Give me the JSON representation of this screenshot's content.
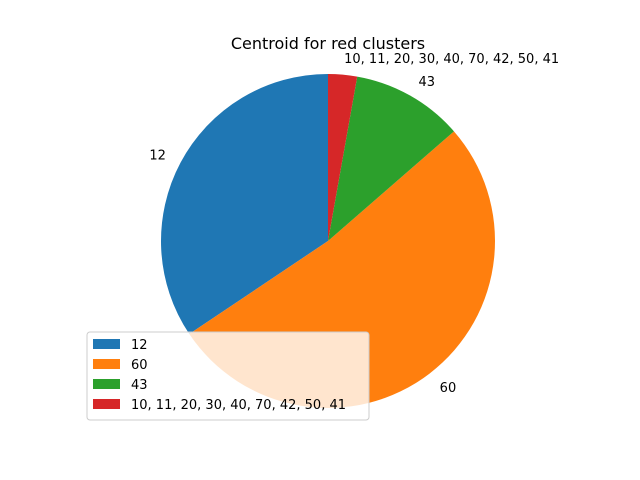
{
  "chart_data": {
    "type": "pie",
    "title": "Centroid for red clusters",
    "slices": [
      {
        "label": "12",
        "legend": "12",
        "value": 34.4,
        "color": "#1f77b4"
      },
      {
        "label": "60",
        "legend": "60",
        "value": 52.0,
        "color": "#ff7f0e"
      },
      {
        "label": "43",
        "legend": "43",
        "value": 10.8,
        "color": "#2ca02c"
      },
      {
        "label": "10, 11, 20, 30, 40, 70, 42, 50, 41",
        "legend": " 10, 11, 20, 30, 40, 70, 42, 50, 41",
        "value": 2.8,
        "color": "#d62728"
      }
    ],
    "start_angle_deg": 90,
    "direction": "counterclockwise",
    "legend_position": "lower-left"
  }
}
